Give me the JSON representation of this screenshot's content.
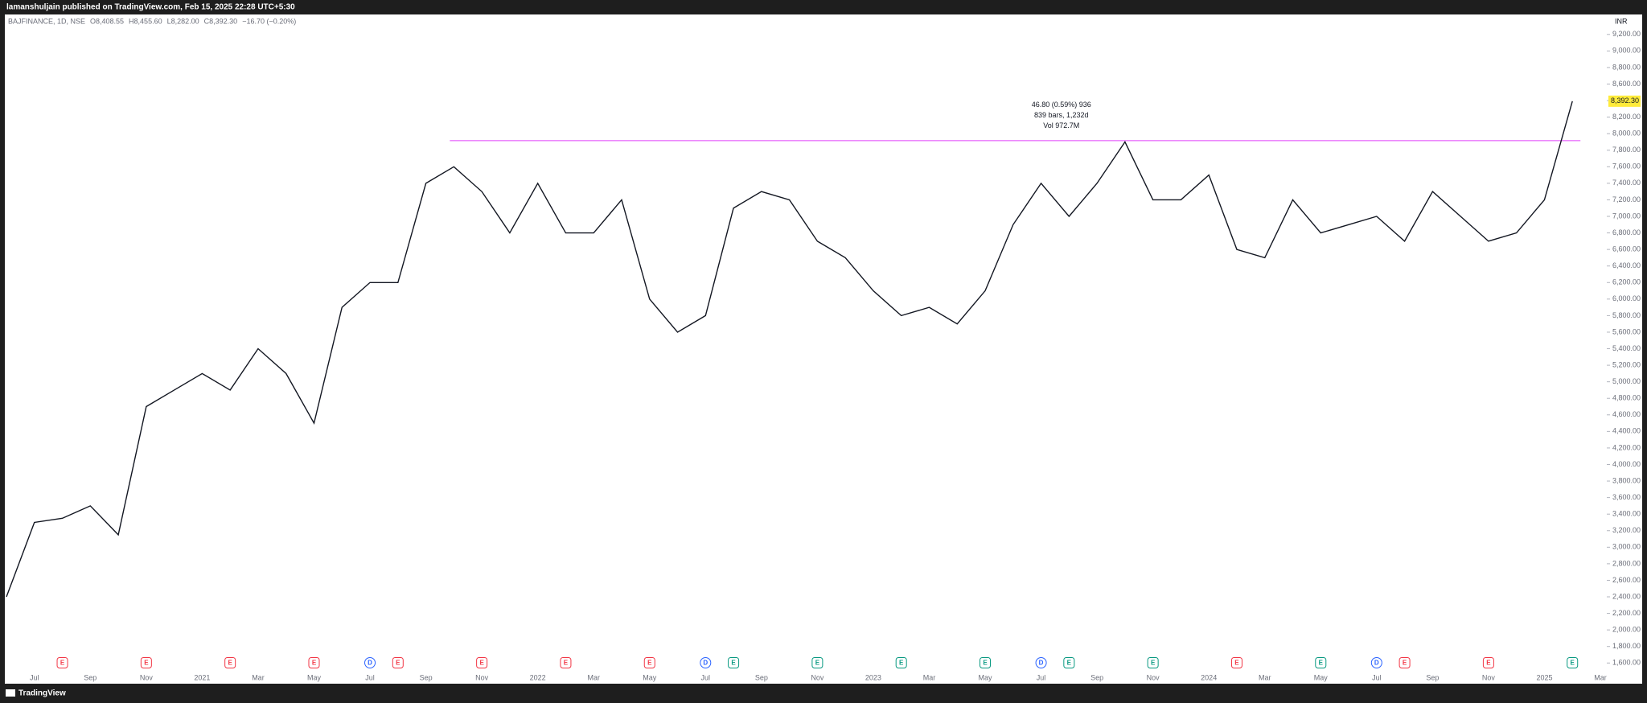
{
  "header": {
    "publisher": "lamanshuljain published on TradingView.com, Feb 15, 2025 22:28 UTC+5:30"
  },
  "footer": {
    "brand": "TradingView"
  },
  "chart_data": {
    "type": "line",
    "symbol": "BAJFINANCE, 1D, NSE",
    "ohlc": [
      "O8,408.55",
      "H8,455.60",
      "L8,282.00",
      "C8,392.30",
      "−16.70 (−0.20%)"
    ],
    "currency": "INR",
    "x": [
      "2020-06",
      "2020-07",
      "2020-08",
      "2020-09",
      "2020-10",
      "2020-11",
      "2020-12",
      "2021-01",
      "2021-02",
      "2021-03",
      "2021-04",
      "2021-05",
      "2021-06",
      "2021-07",
      "2021-08",
      "2021-09",
      "2021-10",
      "2021-11",
      "2021-12",
      "2022-01",
      "2022-02",
      "2022-03",
      "2022-04",
      "2022-05",
      "2022-06",
      "2022-07",
      "2022-08",
      "2022-09",
      "2022-10",
      "2022-11",
      "2022-12",
      "2023-01",
      "2023-02",
      "2023-03",
      "2023-04",
      "2023-05",
      "2023-06",
      "2023-07",
      "2023-08",
      "2023-09",
      "2023-10",
      "2023-11",
      "2023-12",
      "2024-01",
      "2024-02",
      "2024-03",
      "2024-04",
      "2024-05",
      "2024-06",
      "2024-07",
      "2024-08",
      "2024-09",
      "2024-10",
      "2024-11",
      "2024-12",
      "2025-01",
      "2025-02"
    ],
    "series": [
      {
        "color": "#131722",
        "values": [
          2400,
          3300,
          3350,
          3500,
          3150,
          4700,
          4900,
          5100,
          4900,
          5400,
          5100,
          4500,
          5900,
          6200,
          6200,
          7400,
          7600,
          7300,
          6800,
          7400,
          6800,
          6800,
          7200,
          6000,
          5600,
          5800,
          7100,
          7300,
          7200,
          6700,
          6500,
          6100,
          5800,
          5900,
          5700,
          6100,
          6900,
          7400,
          7000,
          7400,
          7900,
          7200,
          7200,
          7500,
          6600,
          6500,
          7200,
          6800,
          6900,
          7000,
          6700,
          7300,
          7000,
          6700,
          6800,
          7200,
          8392.3
        ]
      }
    ],
    "last_price": {
      "value": 8392.3,
      "label": "8,392.30"
    },
    "hline": {
      "value": 7916,
      "color": "#e040fb",
      "from": "2021-10",
      "to": "2025-02"
    },
    "measure": [
      "46.80 (0.59%) 936",
      "839 bars, 1,232d",
      "Vol 972.7M"
    ],
    "xlim": [
      "2020-06",
      "2025-03"
    ],
    "xticks": [
      {
        "value": "2020-07",
        "label": "Jul"
      },
      {
        "value": "2020-09",
        "label": "Sep"
      },
      {
        "value": "2020-11",
        "label": "Nov"
      },
      {
        "value": "2021-01",
        "label": "2021"
      },
      {
        "value": "2021-03",
        "label": "Mar"
      },
      {
        "value": "2021-05",
        "label": "May"
      },
      {
        "value": "2021-07",
        "label": "Jul"
      },
      {
        "value": "2021-09",
        "label": "Sep"
      },
      {
        "value": "2021-11",
        "label": "Nov"
      },
      {
        "value": "2022-01",
        "label": "2022"
      },
      {
        "value": "2022-03",
        "label": "Mar"
      },
      {
        "value": "2022-05",
        "label": "May"
      },
      {
        "value": "2022-07",
        "label": "Jul"
      },
      {
        "value": "2022-09",
        "label": "Sep"
      },
      {
        "value": "2022-11",
        "label": "Nov"
      },
      {
        "value": "2023-01",
        "label": "2023"
      },
      {
        "value": "2023-03",
        "label": "Mar"
      },
      {
        "value": "2023-05",
        "label": "May"
      },
      {
        "value": "2023-07",
        "label": "Jul"
      },
      {
        "value": "2023-09",
        "label": "Sep"
      },
      {
        "value": "2023-11",
        "label": "Nov"
      },
      {
        "value": "2024-01",
        "label": "2024"
      },
      {
        "value": "2024-03",
        "label": "Mar"
      },
      {
        "value": "2024-05",
        "label": "May"
      },
      {
        "value": "2024-07",
        "label": "Jul"
      },
      {
        "value": "2024-09",
        "label": "Sep"
      },
      {
        "value": "2024-11",
        "label": "Nov"
      },
      {
        "value": "2025-01",
        "label": "2025"
      },
      {
        "value": "2025-03",
        "label": "Mar"
      }
    ],
    "ylim": [
      1486,
      9441
    ],
    "yticks": [
      {
        "value": 1600,
        "label": "1,600.00"
      },
      {
        "value": 1800,
        "label": "1,800.00"
      },
      {
        "value": 2000,
        "label": "2,000.00"
      },
      {
        "value": 2200,
        "label": "2,200.00"
      },
      {
        "value": 2400,
        "label": "2,400.00"
      },
      {
        "value": 2600,
        "label": "2,600.00"
      },
      {
        "value": 2800,
        "label": "2,800.00"
      },
      {
        "value": 3000,
        "label": "3,000.00"
      },
      {
        "value": 3200,
        "label": "3,200.00"
      },
      {
        "value": 3400,
        "label": "3,400.00"
      },
      {
        "value": 3600,
        "label": "3,600.00"
      },
      {
        "value": 3800,
        "label": "3,800.00"
      },
      {
        "value": 4000,
        "label": "4,000.00"
      },
      {
        "value": 4200,
        "label": "4,200.00"
      },
      {
        "value": 4400,
        "label": "4,400.00"
      },
      {
        "value": 4600,
        "label": "4,600.00"
      },
      {
        "value": 4800,
        "label": "4,800.00"
      },
      {
        "value": 5000,
        "label": "5,000.00"
      },
      {
        "value": 5200,
        "label": "5,200.00"
      },
      {
        "value": 5400,
        "label": "5,400.00"
      },
      {
        "value": 5600,
        "label": "5,600.00"
      },
      {
        "value": 5800,
        "label": "5,800.00"
      },
      {
        "value": 6000,
        "label": "6,000.00"
      },
      {
        "value": 6200,
        "label": "6,200.00"
      },
      {
        "value": 6400,
        "label": "6,400.00"
      },
      {
        "value": 6600,
        "label": "6,600.00"
      },
      {
        "value": 6800,
        "label": "6,800.00"
      },
      {
        "value": 7000,
        "label": "7,000.00"
      },
      {
        "value": 7200,
        "label": "7,200.00"
      },
      {
        "value": 7400,
        "label": "7,400.00"
      },
      {
        "value": 7600,
        "label": "7,600.00"
      },
      {
        "value": 7800,
        "label": "7,800.00"
      },
      {
        "value": 8000,
        "label": "8,000.00"
      },
      {
        "value": 8200,
        "label": "8,200.00"
      },
      {
        "value": 8400,
        "label": "8,400.00"
      },
      {
        "value": 8600,
        "label": "8,600.00"
      },
      {
        "value": 8800,
        "label": "8,800.00"
      },
      {
        "value": 9000,
        "label": "9,000.00"
      },
      {
        "value": 9200,
        "label": "9,200.00"
      }
    ],
    "grid": false,
    "events": [
      {
        "x": "2020-08",
        "label": "E",
        "color": "#f23645"
      },
      {
        "x": "2020-11",
        "label": "E",
        "color": "#f23645"
      },
      {
        "x": "2021-02",
        "label": "E",
        "color": "#f23645"
      },
      {
        "x": "2021-05",
        "label": "E",
        "color": "#f23645"
      },
      {
        "x": "2021-07",
        "label": "D",
        "color": "#2962ff"
      },
      {
        "x": "2021-08",
        "label": "E",
        "color": "#f23645"
      },
      {
        "x": "2021-11",
        "label": "E",
        "color": "#f23645"
      },
      {
        "x": "2022-02",
        "label": "E",
        "color": "#f23645"
      },
      {
        "x": "2022-05",
        "label": "E",
        "color": "#f23645"
      },
      {
        "x": "2022-07",
        "label": "D",
        "color": "#2962ff"
      },
      {
        "x": "2022-08",
        "label": "E",
        "color": "#089981"
      },
      {
        "x": "2022-11",
        "label": "E",
        "color": "#089981"
      },
      {
        "x": "2023-02",
        "label": "E",
        "color": "#089981"
      },
      {
        "x": "2023-05",
        "label": "E",
        "color": "#089981"
      },
      {
        "x": "2023-07",
        "label": "D",
        "color": "#2962ff"
      },
      {
        "x": "2023-08",
        "label": "E",
        "color": "#089981"
      },
      {
        "x": "2023-11",
        "label": "E",
        "color": "#089981"
      },
      {
        "x": "2024-02",
        "label": "E",
        "color": "#f23645"
      },
      {
        "x": "2024-05",
        "label": "E",
        "color": "#089981"
      },
      {
        "x": "2024-07",
        "label": "D",
        "color": "#2962ff"
      },
      {
        "x": "2024-08",
        "label": "E",
        "color": "#f23645"
      },
      {
        "x": "2024-11",
        "label": "E",
        "color": "#f23645"
      },
      {
        "x": "2025-02",
        "label": "E",
        "color": "#089981"
      }
    ]
  }
}
